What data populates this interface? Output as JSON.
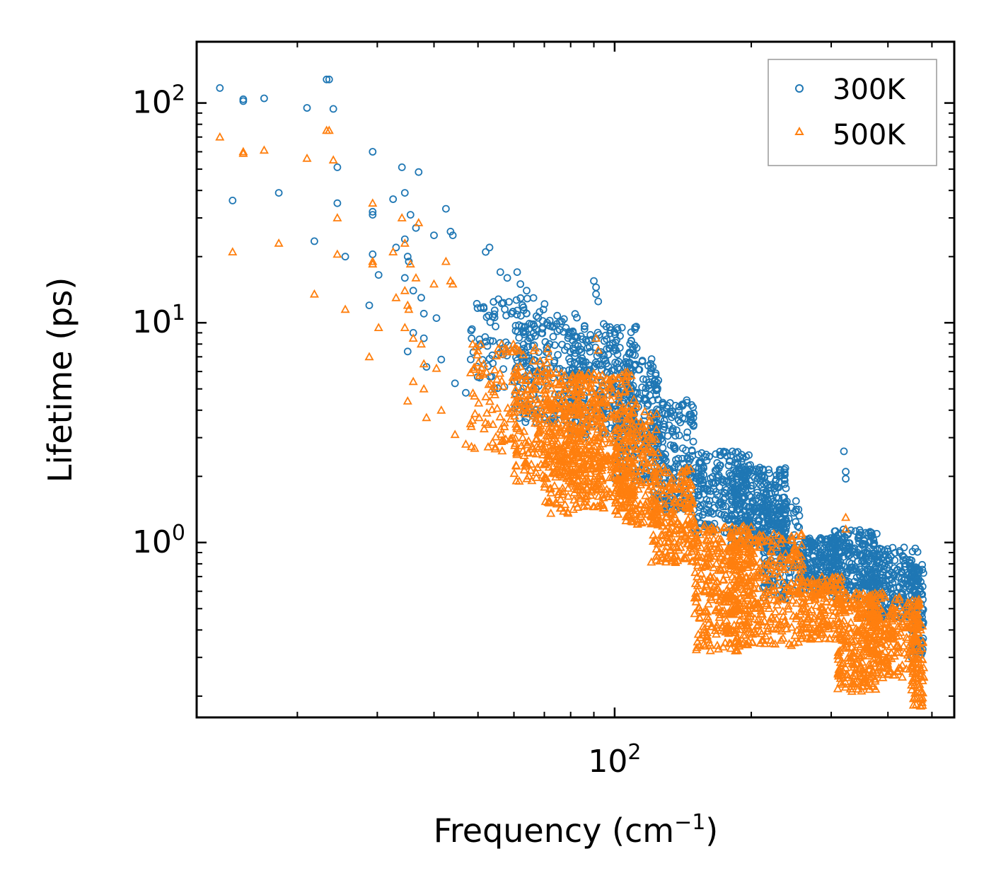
{
  "chart_data": {
    "type": "scatter",
    "xscale": "log",
    "yscale": "log",
    "xlim": [
      12,
      560
    ],
    "ylim": [
      0.16,
      190
    ],
    "xlabel": "Frequency (cm",
    "xlabel_sup": "−1",
    "xlabel_end": ")",
    "ylabel": "Lifetime (ps)",
    "x_ticks": [
      {
        "value": 100,
        "base": "10",
        "exp": "2"
      }
    ],
    "y_ticks": [
      {
        "value": 1,
        "base": "10",
        "exp": "0"
      },
      {
        "value": 10,
        "base": "10",
        "exp": "1"
      },
      {
        "value": 100,
        "base": "10",
        "exp": "2"
      }
    ],
    "legend_position": "upper-right",
    "series": [
      {
        "name": "300K",
        "marker": "circle",
        "color": "#1f77b4",
        "explicit_points": [
          [
            13.5,
            117
          ],
          [
            15.2,
            104
          ],
          [
            15.2,
            102
          ],
          [
            16.9,
            105
          ],
          [
            21.0,
            95
          ],
          [
            23.2,
            128
          ],
          [
            23.5,
            128
          ],
          [
            24.0,
            94
          ],
          [
            14.4,
            36
          ],
          [
            18.2,
            39
          ],
          [
            21.8,
            23.5
          ],
          [
            24.5,
            51
          ],
          [
            24.5,
            35
          ],
          [
            25.5,
            20
          ],
          [
            29.3,
            60
          ],
          [
            29.3,
            32
          ],
          [
            29.3,
            31
          ],
          [
            30.2,
            16.5
          ],
          [
            29.3,
            20.5
          ],
          [
            28.8,
            12
          ],
          [
            32.5,
            36.5
          ],
          [
            34.0,
            51
          ],
          [
            34.5,
            39
          ],
          [
            35.5,
            31
          ],
          [
            36.5,
            27
          ],
          [
            37.0,
            48.5
          ],
          [
            40.0,
            25
          ],
          [
            42.5,
            33
          ],
          [
            43.5,
            26
          ],
          [
            44.0,
            25
          ],
          [
            34.5,
            24
          ],
          [
            35.0,
            20
          ],
          [
            35.2,
            19
          ],
          [
            33.0,
            22
          ],
          [
            34.5,
            16
          ],
          [
            36.0,
            14
          ],
          [
            37.5,
            13
          ],
          [
            38.0,
            11
          ],
          [
            40.5,
            10.5
          ],
          [
            36.0,
            9
          ],
          [
            38.0,
            8.5
          ],
          [
            35.0,
            7.4
          ],
          [
            38.5,
            6.3
          ],
          [
            41.5,
            6.8
          ],
          [
            44.5,
            5.3
          ],
          [
            47.0,
            4.8
          ],
          [
            52.0,
            21
          ],
          [
            53.0,
            22
          ],
          [
            56.0,
            17
          ],
          [
            58.0,
            16
          ],
          [
            61.0,
            17
          ],
          [
            64.0,
            14
          ],
          [
            62.0,
            15
          ],
          [
            90.0,
            15.5
          ],
          [
            91.0,
            14.5
          ],
          [
            91.0,
            13.5
          ],
          [
            92.0,
            12.5
          ],
          [
            320.0,
            2.6
          ],
          [
            323.0,
            2.1
          ],
          [
            323.0,
            1.95
          ]
        ],
        "bands": [
          [
            48,
            72,
            5.0,
            13.0,
            120
          ],
          [
            60,
            85,
            3.5,
            11.0,
            160
          ],
          [
            80,
            112,
            3.0,
            10.0,
            260
          ],
          [
            100,
            125,
            1.9,
            7.0,
            200
          ],
          [
            120,
            150,
            1.4,
            4.5,
            200
          ],
          [
            150,
            200,
            1.1,
            2.6,
            220
          ],
          [
            180,
            240,
            0.9,
            2.2,
            280
          ],
          [
            210,
            258,
            0.55,
            1.55,
            160
          ],
          [
            258,
            310,
            0.6,
            1.05,
            200
          ],
          [
            300,
            380,
            0.55,
            1.15,
            240
          ],
          [
            360,
            465,
            0.45,
            0.95,
            240
          ],
          [
            450,
            480,
            0.3,
            0.8,
            80
          ]
        ]
      },
      {
        "name": "500K",
        "marker": "triangle",
        "color": "#ff7f0e",
        "explicit_points": [
          [
            13.5,
            70
          ],
          [
            15.2,
            60
          ],
          [
            15.2,
            59
          ],
          [
            16.9,
            61
          ],
          [
            21.0,
            56
          ],
          [
            23.2,
            75
          ],
          [
            23.5,
            75
          ],
          [
            24.0,
            55
          ],
          [
            14.4,
            21
          ],
          [
            18.2,
            23
          ],
          [
            21.8,
            13.5
          ],
          [
            24.5,
            30
          ],
          [
            24.5,
            20.5
          ],
          [
            25.5,
            11.5
          ],
          [
            29.3,
            35
          ],
          [
            29.3,
            19
          ],
          [
            29.3,
            18.5
          ],
          [
            30.2,
            9.5
          ],
          [
            28.8,
            7.0
          ],
          [
            32.5,
            21
          ],
          [
            34.0,
            30
          ],
          [
            34.5,
            23
          ],
          [
            35.5,
            18.5
          ],
          [
            36.5,
            16
          ],
          [
            37.0,
            28.5
          ],
          [
            40.0,
            15
          ],
          [
            42.5,
            19
          ],
          [
            43.5,
            15.5
          ],
          [
            44.0,
            15
          ],
          [
            34.5,
            14
          ],
          [
            35.0,
            12
          ],
          [
            35.2,
            11.5
          ],
          [
            33.0,
            13
          ],
          [
            34.5,
            9.5
          ],
          [
            36.0,
            8.5
          ],
          [
            37.5,
            8
          ],
          [
            38.0,
            6.5
          ],
          [
            40.5,
            6.2
          ],
          [
            36.0,
            5.4
          ],
          [
            38.0,
            5.0
          ],
          [
            35.0,
            4.4
          ],
          [
            38.5,
            3.7
          ],
          [
            41.5,
            4.0
          ],
          [
            44.5,
            3.1
          ],
          [
            47.0,
            2.8
          ],
          [
            91.0,
            8.5
          ],
          [
            92.0,
            7.5
          ],
          [
            323.0,
            1.3
          ],
          [
            323.0,
            1.15
          ]
        ],
        "bands": [
          [
            48,
            72,
            2.6,
            8.0,
            140
          ],
          [
            60,
            85,
            1.9,
            6.0,
            200
          ],
          [
            70,
            95,
            1.35,
            4.5,
            260
          ],
          [
            80,
            112,
            1.6,
            6.0,
            280
          ],
          [
            100,
            125,
            1.2,
            4.0,
            220
          ],
          [
            120,
            150,
            0.8,
            2.2,
            220
          ],
          [
            150,
            200,
            0.32,
            1.2,
            320
          ],
          [
            180,
            260,
            0.34,
            1.1,
            320
          ],
          [
            258,
            320,
            0.36,
            0.7,
            160
          ],
          [
            310,
            380,
            0.21,
            0.6,
            240
          ],
          [
            360,
            470,
            0.24,
            0.6,
            240
          ],
          [
            450,
            480,
            0.18,
            0.5,
            80
          ]
        ]
      }
    ]
  }
}
